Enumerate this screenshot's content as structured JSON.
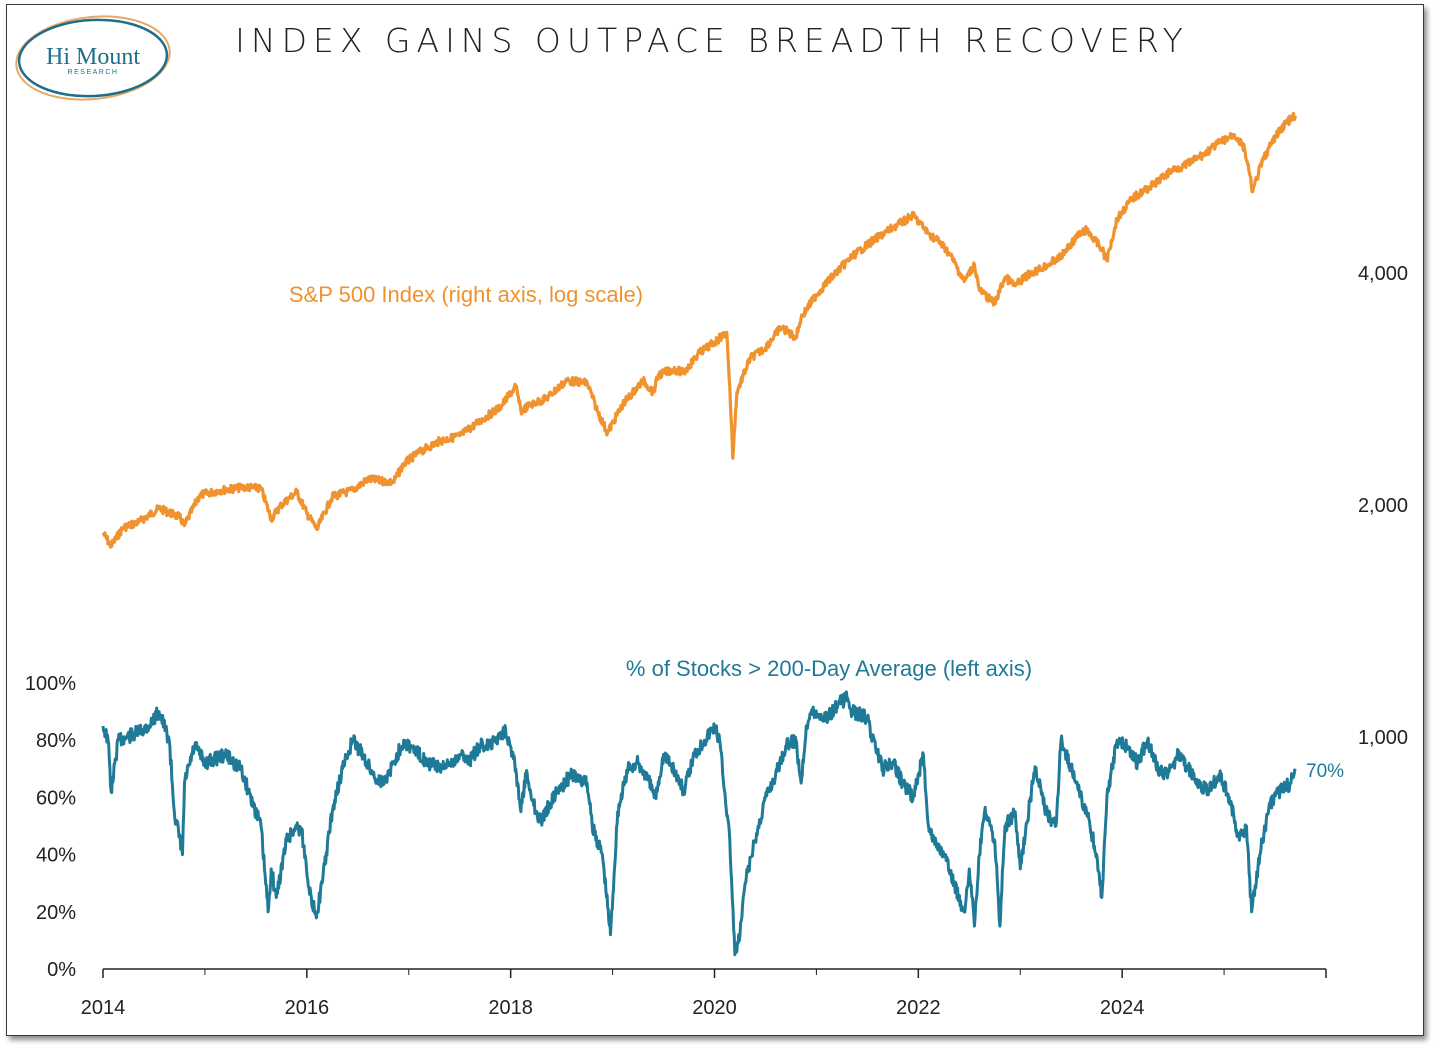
{
  "logo": {
    "name": "Hi Mount",
    "sub": "RESEARCH"
  },
  "chart_data": {
    "type": "line",
    "title": "INDEX GAINS OUTPACE BREADTH RECOVERY",
    "x_ticks": [
      "2014",
      "2016",
      "2018",
      "2020",
      "2022",
      "2024"
    ],
    "x_range": [
      2014.0,
      2026.0
    ],
    "left_axis": {
      "scale": "linear",
      "range": [
        0,
        100
      ],
      "ticks": [
        "0%",
        "20%",
        "40%",
        "60%",
        "80%",
        "100%"
      ]
    },
    "right_axis": {
      "scale": "log",
      "ticks": [
        "1,000",
        "2,000",
        "4,000"
      ]
    },
    "end_label": "70%",
    "series": [
      {
        "name": "S&P 500 Index (right axis, log scale)",
        "axis": "right",
        "color": "#F0922E",
        "x": [
          2014.0,
          2014.08,
          2014.2,
          2014.35,
          2014.55,
          2014.75,
          2014.8,
          2014.95,
          2015.15,
          2015.4,
          2015.55,
          2015.65,
          2015.75,
          2015.9,
          2016.0,
          2016.1,
          2016.25,
          2016.45,
          2016.6,
          2016.85,
          2016.95,
          2017.1,
          2017.3,
          2017.5,
          2017.7,
          2017.9,
          2018.05,
          2018.1,
          2018.2,
          2018.35,
          2018.55,
          2018.75,
          2018.85,
          2018.95,
          2019.1,
          2019.3,
          2019.4,
          2019.45,
          2019.6,
          2019.7,
          2019.85,
          2020.0,
          2020.12,
          2020.18,
          2020.22,
          2020.35,
          2020.5,
          2020.65,
          2020.8,
          2020.85,
          2021.0,
          2021.15,
          2021.35,
          2021.55,
          2021.75,
          2021.95,
          2022.1,
          2022.2,
          2022.3,
          2022.45,
          2022.55,
          2022.6,
          2022.7,
          2022.75,
          2022.85,
          2022.95,
          2023.1,
          2023.2,
          2023.4,
          2023.55,
          2023.65,
          2023.8,
          2023.85,
          2023.95,
          2024.1,
          2024.3,
          2024.5,
          2024.6,
          2024.8,
          2024.95,
          2025.1,
          2025.2,
          2025.28,
          2025.38,
          2025.5,
          2025.6,
          2025.7
        ],
        "y": [
          1840,
          1770,
          1870,
          1900,
          1980,
          1930,
          1880,
          2060,
          2090,
          2110,
          2100,
          1920,
          2000,
          2080,
          1950,
          1860,
          2050,
          2090,
          2160,
          2140,
          2260,
          2340,
          2420,
          2460,
          2570,
          2680,
          2850,
          2650,
          2700,
          2750,
          2900,
          2880,
          2650,
          2480,
          2700,
          2900,
          2800,
          2950,
          3000,
          2970,
          3150,
          3250,
          3350,
          2300,
          2800,
          3100,
          3200,
          3400,
          3300,
          3500,
          3750,
          3950,
          4200,
          4400,
          4580,
          4750,
          4500,
          4400,
          4250,
          3900,
          4100,
          3800,
          3700,
          3650,
          3950,
          3850,
          4000,
          4050,
          4200,
          4450,
          4550,
          4300,
          4150,
          4700,
          5000,
          5200,
          5450,
          5500,
          5700,
          5900,
          6050,
          5800,
          5100,
          5600,
          6000,
          6250,
          6400
        ]
      },
      {
        "name": "% of Stocks > 200-Day Average (left axis)",
        "axis": "left",
        "color": "#1F7A97",
        "x": [
          2014.0,
          2014.05,
          2014.08,
          2014.15,
          2014.3,
          2014.45,
          2014.55,
          2014.65,
          2014.7,
          2014.78,
          2014.8,
          2014.9,
          2015.0,
          2015.2,
          2015.35,
          2015.45,
          2015.55,
          2015.62,
          2015.65,
          2015.7,
          2015.8,
          2015.9,
          2015.95,
          2016.05,
          2016.1,
          2016.15,
          2016.25,
          2016.35,
          2016.45,
          2016.55,
          2016.65,
          2016.75,
          2016.85,
          2016.95,
          2017.1,
          2017.2,
          2017.35,
          2017.5,
          2017.6,
          2017.7,
          2017.8,
          2017.95,
          2018.05,
          2018.1,
          2018.15,
          2018.25,
          2018.3,
          2018.45,
          2018.6,
          2018.75,
          2018.8,
          2018.9,
          2018.98,
          2019.05,
          2019.15,
          2019.25,
          2019.35,
          2019.42,
          2019.5,
          2019.6,
          2019.7,
          2019.8,
          2019.9,
          2020.0,
          2020.05,
          2020.15,
          2020.2,
          2020.25,
          2020.3,
          2020.4,
          2020.5,
          2020.6,
          2020.7,
          2020.8,
          2020.85,
          2020.9,
          2020.95,
          2021.1,
          2021.2,
          2021.3,
          2021.35,
          2021.5,
          2021.55,
          2021.6,
          2021.65,
          2021.75,
          2021.85,
          2021.95,
          2022.05,
          2022.1,
          2022.15,
          2022.25,
          2022.35,
          2022.45,
          2022.5,
          2022.55,
          2022.6,
          2022.65,
          2022.75,
          2022.8,
          2022.85,
          2022.95,
          2023.0,
          2023.1,
          2023.15,
          2023.25,
          2023.35,
          2023.4,
          2023.5,
          2023.55,
          2023.65,
          2023.75,
          2023.8,
          2023.85,
          2023.95,
          2024.05,
          2024.15,
          2024.25,
          2024.35,
          2024.45,
          2024.55,
          2024.65,
          2024.75,
          2024.85,
          2024.95,
          2025.05,
          2025.15,
          2025.22,
          2025.27,
          2025.35,
          2025.45,
          2025.55,
          2025.65,
          2025.7
        ],
        "y": [
          85,
          80,
          62,
          80,
          82,
          85,
          90,
          80,
          55,
          40,
          65,
          78,
          72,
          75,
          70,
          60,
          50,
          20,
          35,
          25,
          45,
          50,
          48,
          22,
          20,
          30,
          55,
          70,
          80,
          75,
          68,
          65,
          72,
          80,
          75,
          72,
          70,
          75,
          73,
          78,
          78,
          84,
          70,
          55,
          68,
          55,
          52,
          62,
          68,
          65,
          50,
          40,
          12,
          55,
          70,
          72,
          66,
          60,
          75,
          70,
          62,
          75,
          80,
          85,
          80,
          45,
          5,
          12,
          30,
          45,
          60,
          68,
          78,
          80,
          65,
          85,
          90,
          88,
          92,
          95,
          90,
          88,
          80,
          75,
          70,
          72,
          65,
          60,
          75,
          50,
          45,
          40,
          30,
          20,
          35,
          15,
          40,
          55,
          45,
          15,
          50,
          55,
          35,
          60,
          70,
          55,
          50,
          80,
          70,
          65,
          55,
          40,
          25,
          60,
          80,
          78,
          72,
          80,
          70,
          68,
          75,
          70,
          65,
          62,
          68,
          60,
          45,
          50,
          20,
          40,
          58,
          62,
          65,
          70
        ]
      }
    ]
  },
  "colors": {
    "spx": "#F0922E",
    "breadth": "#1F7A97",
    "axis": "#222222",
    "text": "#222222"
  }
}
